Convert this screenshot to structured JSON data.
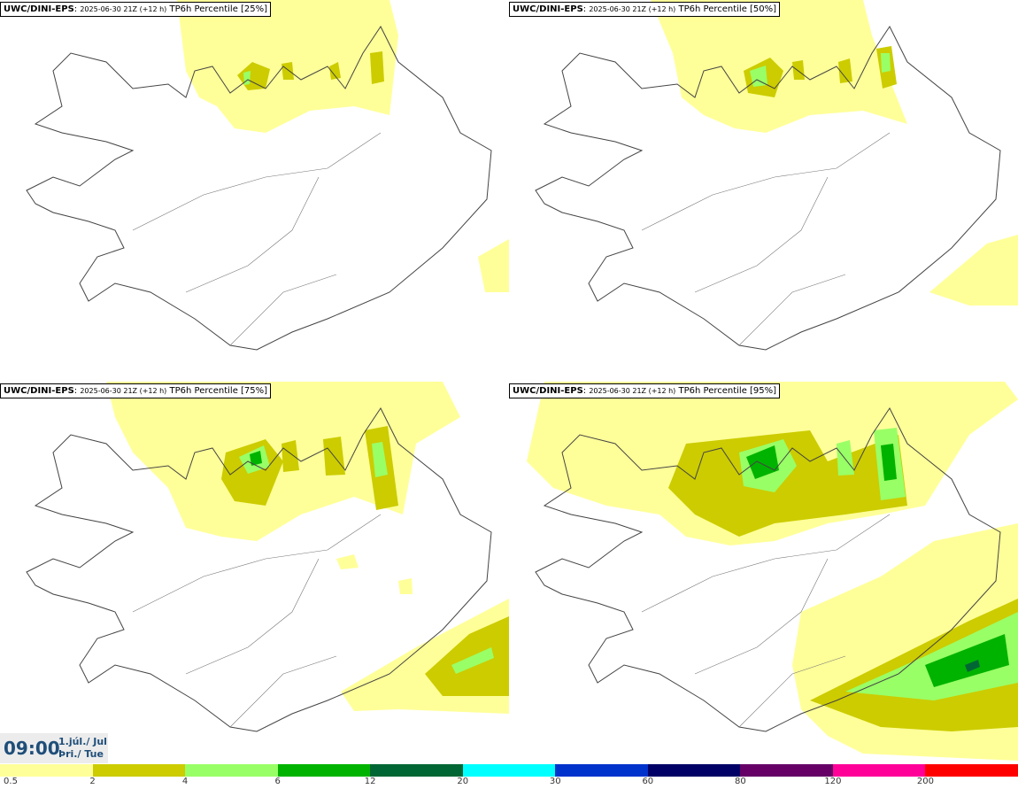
{
  "panels": [
    {
      "model": "UWC/DINI-EPS",
      "run": "2025-06-30 21Z (+12 h)",
      "label": "TP6h Percentile [25%]"
    },
    {
      "model": "UWC/DINI-EPS",
      "run": "2025-06-30 21Z (+12 h)",
      "label": "TP6h Percentile [50%]"
    },
    {
      "model": "UWC/DINI-EPS",
      "run": "2025-06-30 21Z (+12 h)",
      "label": "TP6h Percentile [75%]"
    },
    {
      "model": "UWC/DINI-EPS",
      "run": "2025-06-30 21Z (+12 h)",
      "label": "TP6h Percentile [95%]"
    }
  ],
  "time": {
    "clock": "09:00",
    "date_line1": "1.júl./ Jul",
    "date_line2": "Þri./ Tue"
  },
  "legend": {
    "labels": [
      "0.5",
      "2",
      "4",
      "6",
      "12",
      "20",
      "30",
      "60",
      "80",
      "120",
      "200"
    ],
    "colors": [
      "#ffff99",
      "#cccc00",
      "#99ff66",
      "#00b300",
      "#006633",
      "#00ffff",
      "#0033cc",
      "#000066",
      "#660066",
      "#ff0099",
      "#ff0000"
    ]
  },
  "colors": {
    "title_text": "#1f4e79",
    "coast": "#444444"
  }
}
